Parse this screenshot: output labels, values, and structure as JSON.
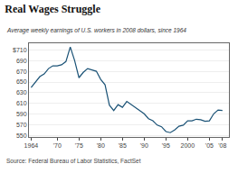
{
  "chart_data": {
    "type": "line",
    "title": "Real Wages Struggle",
    "subtitle": "Average weekly earnings of U.S. workers in 2008 dollars, since 1964",
    "annotations": [
      "Source: Federal Bureau of Labor Statistics, FactSet"
    ],
    "x": [
      1964,
      1965,
      1966,
      1967,
      1968,
      1969,
      1970,
      1971,
      1972,
      1973,
      1974,
      1975,
      1976,
      1977,
      1978,
      1979,
      1980,
      1981,
      1982,
      1983,
      1984,
      1985,
      1986,
      1987,
      1988,
      1989,
      1990,
      1991,
      1992,
      1993,
      1994,
      1995,
      1996,
      1997,
      1998,
      1999,
      2000,
      2001,
      2002,
      2003,
      2004,
      2005,
      2006,
      2007,
      2008
    ],
    "values": [
      640,
      650,
      660,
      665,
      675,
      680,
      680,
      682,
      688,
      715,
      690,
      658,
      668,
      675,
      673,
      670,
      655,
      645,
      607,
      597,
      608,
      603,
      614,
      608,
      603,
      596,
      591,
      582,
      578,
      570,
      567,
      558,
      556,
      561,
      568,
      570,
      578,
      578,
      581,
      580,
      577,
      578,
      591,
      598,
      597
    ],
    "color": "#1a5276",
    "xlim": [
      1963.5,
      2009.5
    ],
    "xticks": [
      1964,
      {
        "value": 1970,
        "label": "'70"
      },
      {
        "value": 1975,
        "label": "'75"
      },
      {
        "value": 1980,
        "label": "'80"
      },
      {
        "value": 1985,
        "label": "'85"
      },
      {
        "value": 1990,
        "label": "'90"
      },
      {
        "value": 1995,
        "label": "'95"
      },
      2000,
      {
        "value": 2005,
        "label": "'05"
      },
      {
        "value": 2008,
        "label": "'08"
      }
    ],
    "ylim": [
      548,
      722
    ],
    "yticks": [
      550,
      570,
      590,
      610,
      630,
      650,
      670,
      690,
      {
        "value": 710,
        "label": "$710"
      }
    ],
    "grid": true
  }
}
